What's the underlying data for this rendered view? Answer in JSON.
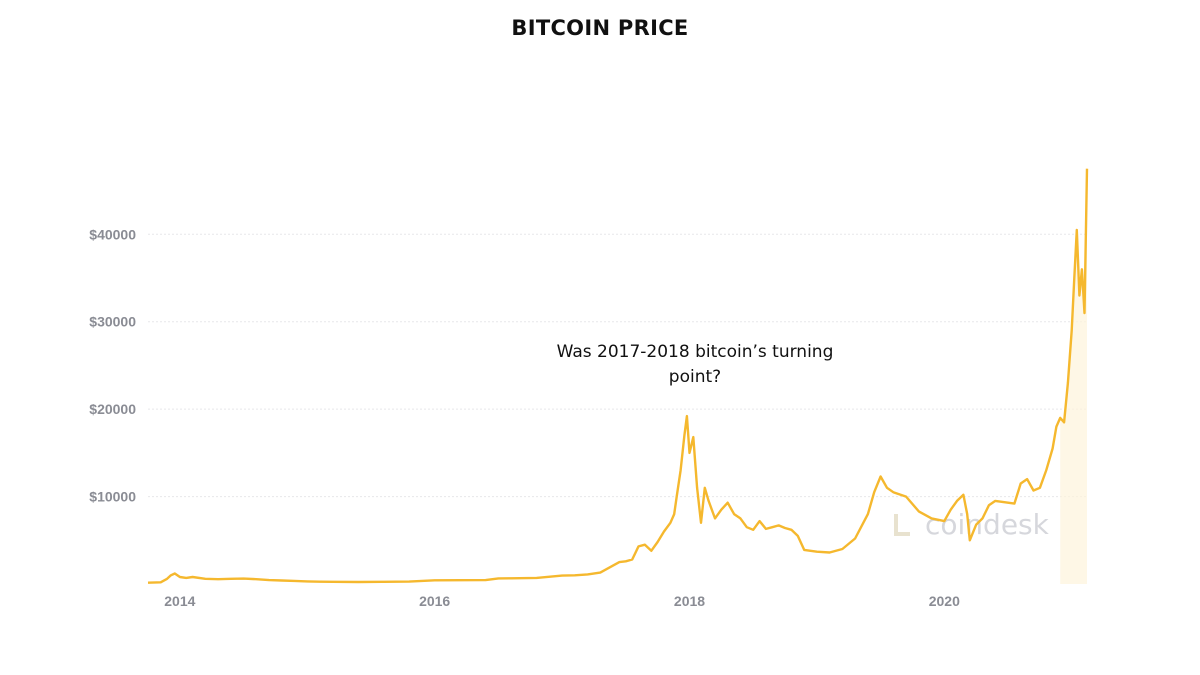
{
  "colors": {
    "line": "#f5b82e",
    "fill": "#fdf3dc",
    "grid": "#e7e7ea",
    "tick": "#8a8c94",
    "watermark": "#d6d7dc"
  },
  "watermark": {
    "text": "coindesk"
  },
  "chart_data": {
    "type": "line",
    "title": "BITCOIN PRICE",
    "annotation": "Was 2017-2018 bitcoin’s turning point?",
    "xlabel": "",
    "ylabel": "",
    "xlim": [
      2013.75,
      2021.12
    ],
    "ylim": [
      0,
      48500
    ],
    "x_ticks": [
      2014,
      2016,
      2018,
      2020
    ],
    "x_tick_labels": [
      "2014",
      "2016",
      "2018",
      "2020"
    ],
    "y_ticks": [
      10000,
      20000,
      30000,
      40000
    ],
    "y_tick_labels": [
      "$10000",
      "$20000",
      "$30000",
      "$40000"
    ],
    "grid": true,
    "legend": "none",
    "series": [
      {
        "x": [
          2013.75,
          2013.85,
          2013.9,
          2013.93,
          2013.96,
          2014.0,
          2014.05,
          2014.1,
          2014.2,
          2014.3,
          2014.4,
          2014.5,
          2014.6,
          2014.7,
          2014.8,
          2014.9,
          2015.0,
          2015.1,
          2015.2,
          2015.4,
          2015.6,
          2015.8,
          2016.0,
          2016.2,
          2016.4,
          2016.5,
          2016.6,
          2016.8,
          2017.0,
          2017.1,
          2017.2,
          2017.3,
          2017.4,
          2017.45,
          2017.5,
          2017.55,
          2017.6,
          2017.65,
          2017.7,
          2017.75,
          2017.8,
          2017.85,
          2017.88,
          2017.9,
          2017.93,
          2017.96,
          2017.98,
          2018.0,
          2018.03,
          2018.06,
          2018.09,
          2018.12,
          2018.15,
          2018.2,
          2018.25,
          2018.3,
          2018.35,
          2018.4,
          2018.45,
          2018.5,
          2018.55,
          2018.6,
          2018.65,
          2018.7,
          2018.75,
          2018.8,
          2018.85,
          2018.9,
          2019.0,
          2019.1,
          2019.2,
          2019.3,
          2019.4,
          2019.45,
          2019.5,
          2019.55,
          2019.6,
          2019.7,
          2019.8,
          2019.9,
          2020.0,
          2020.05,
          2020.1,
          2020.15,
          2020.18,
          2020.2,
          2020.25,
          2020.3,
          2020.35,
          2020.4,
          2020.5,
          2020.55,
          2020.6,
          2020.65,
          2020.7,
          2020.75,
          2020.8,
          2020.85,
          2020.88,
          2020.91,
          2020.94,
          2020.97,
          2021.0,
          2021.02,
          2021.04,
          2021.06,
          2021.08,
          2021.1,
          2021.12
        ],
        "y": [
          150,
          200,
          600,
          1000,
          1200,
          800,
          700,
          800,
          600,
          550,
          600,
          620,
          550,
          450,
          400,
          350,
          300,
          260,
          250,
          230,
          250,
          280,
          420,
          430,
          450,
          640,
          650,
          700,
          960,
          1000,
          1100,
          1300,
          2100,
          2500,
          2600,
          2800,
          4300,
          4500,
          3800,
          4800,
          6000,
          7000,
          8000,
          10000,
          13000,
          17000,
          19200,
          15000,
          16800,
          11000,
          7000,
          11000,
          9500,
          7500,
          8500,
          9300,
          8000,
          7500,
          6500,
          6200,
          7200,
          6300,
          6500,
          6700,
          6400,
          6200,
          5500,
          3900,
          3700,
          3600,
          4000,
          5200,
          8000,
          10500,
          12300,
          11000,
          10500,
          10000,
          8300,
          7500,
          7200,
          8500,
          9500,
          10200,
          8000,
          5000,
          6800,
          7500,
          9000,
          9500,
          9300,
          9200,
          11500,
          12000,
          10700,
          11000,
          13000,
          15500,
          18000,
          19000,
          18500,
          23000,
          29000,
          35000,
          40500,
          33000,
          36000,
          31000,
          47500
        ]
      }
    ]
  }
}
